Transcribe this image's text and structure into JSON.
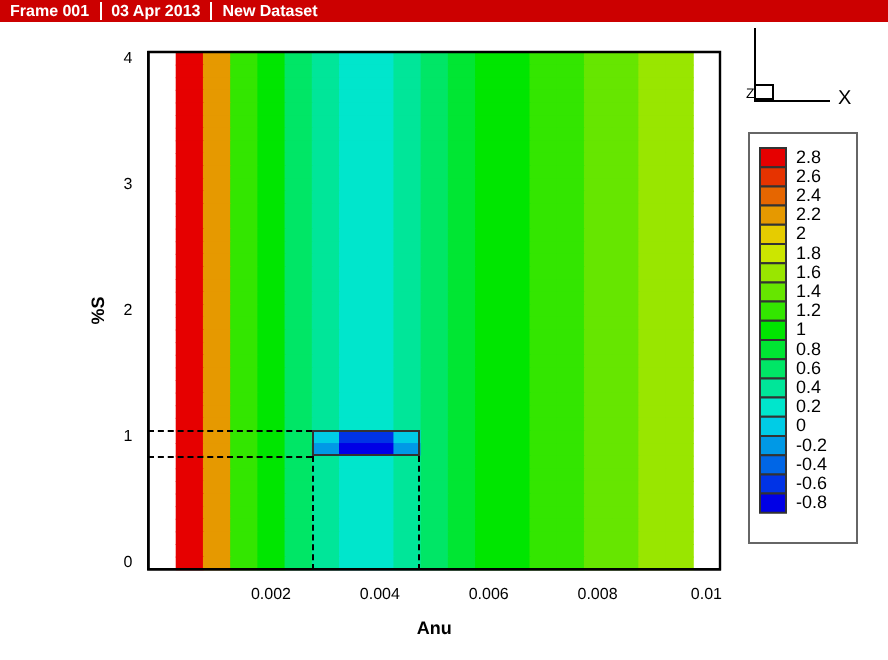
{
  "chart_data": {
    "type": "heatmap",
    "xlabel": "Anu",
    "ylabel": "%S",
    "annotations": [
      "Frame 001",
      "03 Apr 2013",
      "New Dataset",
      "Z",
      "X"
    ],
    "categories": [
      null,
      null,
      null,
      null,
      "0.002",
      null,
      null,
      null,
      "0.004",
      null,
      null,
      null,
      "0.006",
      null,
      null,
      null,
      "0.008",
      null,
      null,
      null,
      "0.01"
    ],
    "y_categories": [
      "4",
      null,
      null,
      null,
      null,
      null,
      null,
      null,
      null,
      null,
      "3",
      null,
      null,
      null,
      null,
      null,
      null,
      null,
      null,
      null,
      "2",
      null,
      null,
      null,
      null,
      null,
      null,
      null,
      null,
      null,
      "1",
      null,
      null,
      null,
      null,
      null,
      null,
      null,
      null,
      null,
      "0"
    ],
    "clim": [
      -0.8,
      2.8
    ],
    "cticks": [
      -0.8,
      -0.6,
      -0.4,
      -0.2,
      0,
      0.2,
      0.4,
      0.6,
      0.8,
      1,
      1.2,
      1.4,
      1.6,
      1.8,
      2,
      2.2,
      2.4,
      2.6,
      2.8
    ],
    "grid": false,
    "cells": [
      [
        null,
        2.8,
        2.2,
        1.2,
        1,
        0.6,
        0.4,
        0.2,
        0.2,
        0.4,
        0.6,
        0.8,
        1,
        1,
        1.2,
        1.2,
        1.4,
        1.4,
        1.6,
        1.6,
        null
      ],
      [
        null,
        2.8,
        2.2,
        1.2,
        1,
        0.6,
        0.4,
        0.2,
        0.2,
        0.4,
        0.6,
        0.8,
        1,
        1,
        1.2,
        1.2,
        1.4,
        1.4,
        1.6,
        1.6,
        null
      ],
      [
        null,
        2.8,
        2.2,
        1.2,
        1,
        0.6,
        0.4,
        0.2,
        0.2,
        0.4,
        0.6,
        0.8,
        1,
        1,
        1.2,
        1.2,
        1.4,
        1.4,
        1.6,
        1.6,
        null
      ],
      [
        null,
        2.8,
        2.2,
        1.2,
        1,
        0.6,
        0.4,
        0.2,
        0.2,
        0.4,
        0.6,
        0.8,
        1,
        1,
        1.2,
        1.2,
        1.4,
        1.4,
        1.6,
        1.6,
        null
      ],
      [
        null,
        2.8,
        2.2,
        1.2,
        1,
        0.6,
        0.4,
        0.2,
        0.2,
        0.4,
        0.6,
        0.8,
        1,
        1,
        1.2,
        1.2,
        1.4,
        1.4,
        1.6,
        1.6,
        null
      ],
      [
        null,
        2.8,
        2.2,
        1.2,
        1,
        0.6,
        0.4,
        0.2,
        0.2,
        0.4,
        0.6,
        0.8,
        1,
        1,
        1.2,
        1.2,
        1.4,
        1.4,
        1.6,
        1.6,
        null
      ],
      [
        null,
        2.8,
        2.2,
        1.2,
        1,
        0.6,
        0.4,
        0.2,
        0.2,
        0.4,
        0.6,
        0.8,
        1,
        1,
        1.2,
        1.2,
        1.4,
        1.4,
        1.6,
        1.6,
        null
      ],
      [
        null,
        2.8,
        2.2,
        1.2,
        1,
        0.6,
        0.4,
        0.2,
        0.2,
        0.4,
        0.6,
        0.8,
        1,
        1,
        1.2,
        1.2,
        1.4,
        1.4,
        1.6,
        1.6,
        null
      ],
      [
        null,
        2.8,
        2.2,
        1.2,
        1,
        0.6,
        0.4,
        0.2,
        0.2,
        0.4,
        0.6,
        0.8,
        1,
        1,
        1.2,
        1.2,
        1.4,
        1.4,
        1.6,
        1.6,
        null
      ],
      [
        null,
        2.8,
        2.2,
        1.2,
        1,
        0.6,
        0.4,
        0.2,
        0.2,
        0.4,
        0.6,
        0.8,
        1,
        1,
        1.2,
        1.2,
        1.4,
        1.4,
        1.6,
        1.6,
        null
      ],
      [
        null,
        2.8,
        2.2,
        1.2,
        1,
        0.6,
        0.4,
        0.2,
        0.2,
        0.4,
        0.6,
        0.8,
        1,
        1,
        1.2,
        1.2,
        1.4,
        1.4,
        1.6,
        1.6,
        null
      ],
      [
        null,
        2.8,
        2.2,
        1.2,
        1,
        0.6,
        0.4,
        0.2,
        0.2,
        0.4,
        0.6,
        0.8,
        1,
        1,
        1.2,
        1.2,
        1.4,
        1.4,
        1.6,
        1.6,
        null
      ],
      [
        null,
        2.8,
        2.2,
        1.2,
        1,
        0.6,
        0.4,
        0.2,
        0.2,
        0.4,
        0.6,
        0.8,
        1,
        1,
        1.2,
        1.2,
        1.4,
        1.4,
        1.6,
        1.6,
        null
      ],
      [
        null,
        2.8,
        2.2,
        1.2,
        1,
        0.6,
        0.4,
        0.2,
        0.2,
        0.4,
        0.6,
        0.8,
        1,
        1,
        1.2,
        1.2,
        1.4,
        1.4,
        1.6,
        1.6,
        null
      ],
      [
        null,
        2.8,
        2.2,
        1.2,
        1,
        0.6,
        0.4,
        0.2,
        0.2,
        0.4,
        0.6,
        0.8,
        1,
        1,
        1.2,
        1.2,
        1.4,
        1.4,
        1.6,
        1.6,
        null
      ],
      [
        null,
        2.8,
        2.2,
        1.2,
        1,
        0.6,
        0.4,
        0.2,
        0.2,
        0.4,
        0.6,
        0.8,
        1,
        1,
        1.2,
        1.2,
        1.4,
        1.4,
        1.6,
        1.6,
        null
      ],
      [
        null,
        2.8,
        2.2,
        1.2,
        1,
        0.6,
        0.4,
        0.2,
        0.2,
        0.4,
        0.6,
        0.8,
        1,
        1,
        1.2,
        1.2,
        1.4,
        1.4,
        1.6,
        1.6,
        null
      ],
      [
        null,
        2.8,
        2.2,
        1.2,
        1,
        0.6,
        0.4,
        0.2,
        0.2,
        0.4,
        0.6,
        0.8,
        1,
        1,
        1.2,
        1.2,
        1.4,
        1.4,
        1.6,
        1.6,
        null
      ],
      [
        null,
        2.8,
        2.2,
        1.2,
        1,
        0.6,
        0.4,
        0.2,
        0.2,
        0.4,
        0.6,
        0.8,
        1,
        1,
        1.2,
        1.2,
        1.4,
        1.4,
        1.6,
        1.6,
        null
      ],
      [
        null,
        2.8,
        2.2,
        1.2,
        1,
        0.6,
        0.4,
        0.2,
        0.2,
        0.4,
        0.6,
        0.8,
        1,
        1,
        1.2,
        1.2,
        1.4,
        1.4,
        1.6,
        1.6,
        null
      ],
      [
        null,
        2.8,
        2.2,
        1.2,
        1,
        0.6,
        0.4,
        0.2,
        0.2,
        0.4,
        0.6,
        0.8,
        1,
        1,
        1.2,
        1.2,
        1.4,
        1.4,
        1.6,
        1.6,
        null
      ],
      [
        null,
        2.8,
        2.2,
        1.2,
        1,
        0.6,
        0.4,
        0.2,
        0.2,
        0.4,
        0.6,
        0.8,
        1,
        1,
        1.2,
        1.2,
        1.4,
        1.4,
        1.6,
        1.6,
        null
      ],
      [
        null,
        2.8,
        2.2,
        1.2,
        1,
        0.6,
        0.4,
        0.2,
        0.2,
        0.4,
        0.6,
        0.8,
        1,
        1,
        1.2,
        1.2,
        1.4,
        1.4,
        1.6,
        1.6,
        null
      ],
      [
        null,
        2.8,
        2.2,
        1.2,
        1,
        0.6,
        0.4,
        0.2,
        0.2,
        0.4,
        0.6,
        0.8,
        1,
        1,
        1.2,
        1.2,
        1.4,
        1.4,
        1.6,
        1.6,
        null
      ],
      [
        null,
        2.8,
        2.2,
        1.2,
        1,
        0.6,
        0.4,
        0.2,
        0.2,
        0.4,
        0.6,
        0.8,
        1,
        1,
        1.2,
        1.2,
        1.4,
        1.4,
        1.6,
        1.6,
        null
      ],
      [
        null,
        2.8,
        2.2,
        1.2,
        1,
        0.6,
        0.4,
        0.2,
        0.2,
        0.4,
        0.6,
        0.8,
        1,
        1,
        1.2,
        1.2,
        1.4,
        1.4,
        1.6,
        1.6,
        null
      ],
      [
        null,
        2.8,
        2.2,
        1.2,
        1,
        0.6,
        0.4,
        0.2,
        0.2,
        0.4,
        0.6,
        0.8,
        1,
        1,
        1.2,
        1.2,
        1.4,
        1.4,
        1.6,
        1.6,
        null
      ],
      [
        null,
        2.8,
        2.2,
        1.2,
        1,
        0.6,
        0.4,
        0.2,
        0.2,
        0.4,
        0.6,
        0.8,
        1,
        1,
        1.2,
        1.2,
        1.4,
        1.4,
        1.6,
        1.6,
        null
      ],
      [
        null,
        2.8,
        2.2,
        1.2,
        1,
        0.6,
        0.4,
        0.2,
        0.2,
        0.4,
        0.6,
        0.8,
        1,
        1,
        1.2,
        1.2,
        1.4,
        1.4,
        1.6,
        1.6,
        null
      ],
      [
        null,
        2.8,
        2.2,
        1.2,
        1,
        0.6,
        0.4,
        0.2,
        0.2,
        0.4,
        0.6,
        0.8,
        1,
        1,
        1.2,
        1.2,
        1.4,
        1.4,
        1.6,
        1.6,
        null
      ],
      [
        null,
        2.8,
        2.2,
        1.2,
        1,
        0.6,
        0,
        -0.6,
        -0.6,
        0,
        0.6,
        0.8,
        1,
        1,
        1.2,
        1.2,
        1.4,
        1.4,
        1.6,
        1.6,
        null
      ],
      [
        null,
        2.8,
        2.2,
        1.2,
        1,
        0.6,
        -0.2,
        -0.8,
        -0.8,
        -0.2,
        0.6,
        0.8,
        1,
        1,
        1.2,
        1.2,
        1.4,
        1.4,
        1.6,
        1.6,
        null
      ],
      [
        null,
        2.8,
        2.2,
        1.2,
        1,
        0.6,
        0.4,
        0.2,
        0.2,
        0.4,
        0.6,
        0.8,
        1,
        1,
        1.2,
        1.2,
        1.4,
        1.4,
        1.6,
        1.6,
        null
      ],
      [
        null,
        2.8,
        2.2,
        1.2,
        1,
        0.6,
        0.4,
        0.2,
        0.2,
        0.4,
        0.6,
        0.8,
        1,
        1,
        1.2,
        1.2,
        1.4,
        1.4,
        1.6,
        1.6,
        null
      ],
      [
        null,
        2.8,
        2.2,
        1.2,
        1,
        0.6,
        0.4,
        0.2,
        0.2,
        0.4,
        0.6,
        0.8,
        1,
        1,
        1.2,
        1.2,
        1.4,
        1.4,
        1.6,
        1.6,
        null
      ],
      [
        null,
        2.8,
        2.2,
        1.2,
        1,
        0.6,
        0.4,
        0.2,
        0.2,
        0.4,
        0.6,
        0.8,
        1,
        1,
        1.2,
        1.2,
        1.4,
        1.4,
        1.6,
        1.6,
        null
      ],
      [
        null,
        2.8,
        2.2,
        1.2,
        1,
        0.6,
        0.4,
        0.2,
        0.2,
        0.4,
        0.6,
        0.8,
        1,
        1,
        1.2,
        1.2,
        1.4,
        1.4,
        1.6,
        1.6,
        null
      ],
      [
        null,
        2.8,
        2.2,
        1.2,
        1,
        0.6,
        0.4,
        0.2,
        0.2,
        0.4,
        0.6,
        0.8,
        1,
        1,
        1.2,
        1.2,
        1.4,
        1.4,
        1.6,
        1.6,
        null
      ],
      [
        null,
        2.8,
        2.2,
        1.2,
        1,
        0.6,
        0.4,
        0.2,
        0.2,
        0.4,
        0.6,
        0.8,
        1,
        1,
        1.2,
        1.2,
        1.4,
        1.4,
        1.6,
        1.6,
        null
      ],
      [
        null,
        2.8,
        2.2,
        1.2,
        1,
        0.6,
        0.4,
        0.2,
        0.2,
        0.4,
        0.6,
        0.8,
        1,
        1,
        1.2,
        1.2,
        1.4,
        1.4,
        1.6,
        1.6,
        null
      ],
      [
        null,
        2.8,
        2.2,
        1.2,
        1,
        0.6,
        0.4,
        0.2,
        0.2,
        0.4,
        0.6,
        0.8,
        1,
        1,
        1.2,
        1.2,
        1.4,
        1.4,
        1.6,
        1.6,
        null
      ]
    ]
  }
}
